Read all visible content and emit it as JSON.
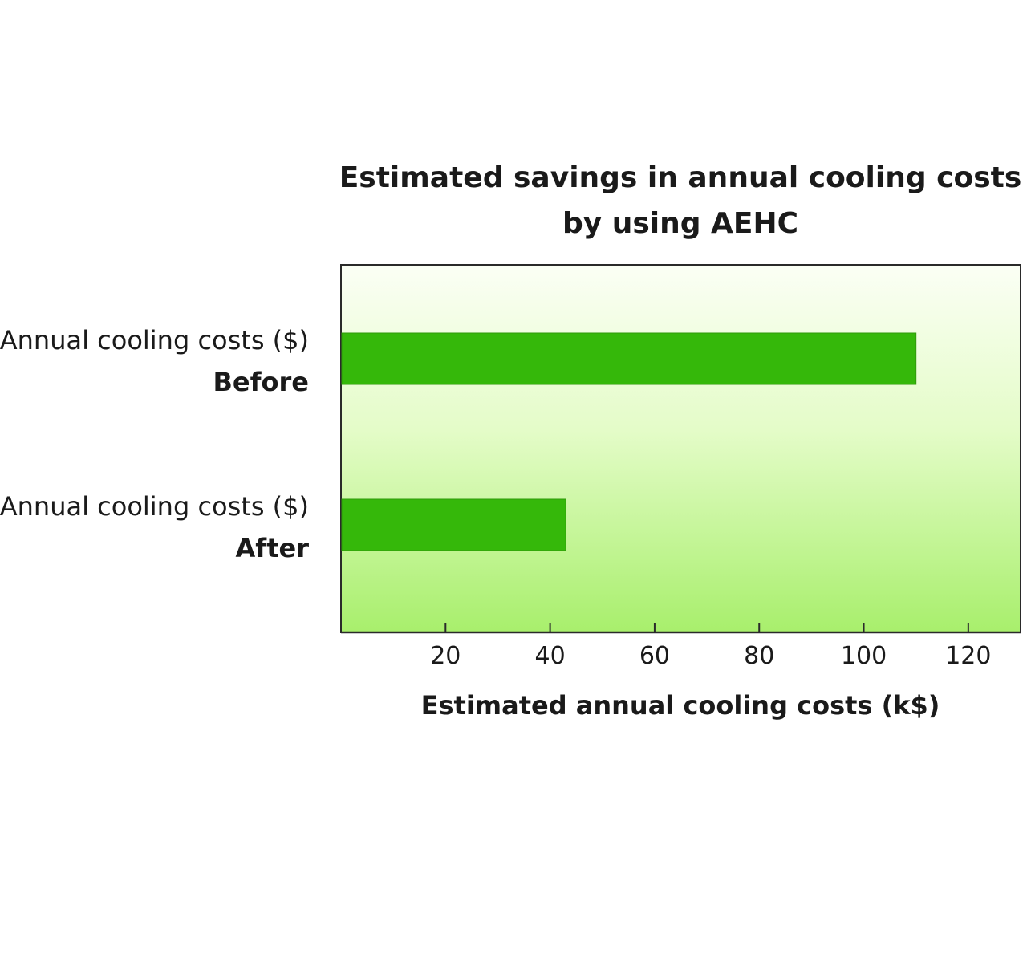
{
  "chart_data": {
    "type": "bar",
    "orientation": "horizontal",
    "title_lines": [
      "Estimated savings in annual cooling costs",
      "by using AEHC"
    ],
    "categories": [
      {
        "label": "Annual cooling costs ($)",
        "sub": "Before"
      },
      {
        "label": "Annual cooling costs ($)",
        "sub": "After"
      }
    ],
    "values": [
      110,
      43
    ],
    "xlabel": "Estimated annual cooling costs (k$)",
    "xlim": [
      0,
      130
    ],
    "xticks": [
      20,
      40,
      60,
      80,
      100,
      120
    ],
    "grid": false,
    "bar_color": "#35b80a",
    "plot_background_top": "#fbfff5",
    "plot_background_bottom": "#a8ef6c"
  }
}
